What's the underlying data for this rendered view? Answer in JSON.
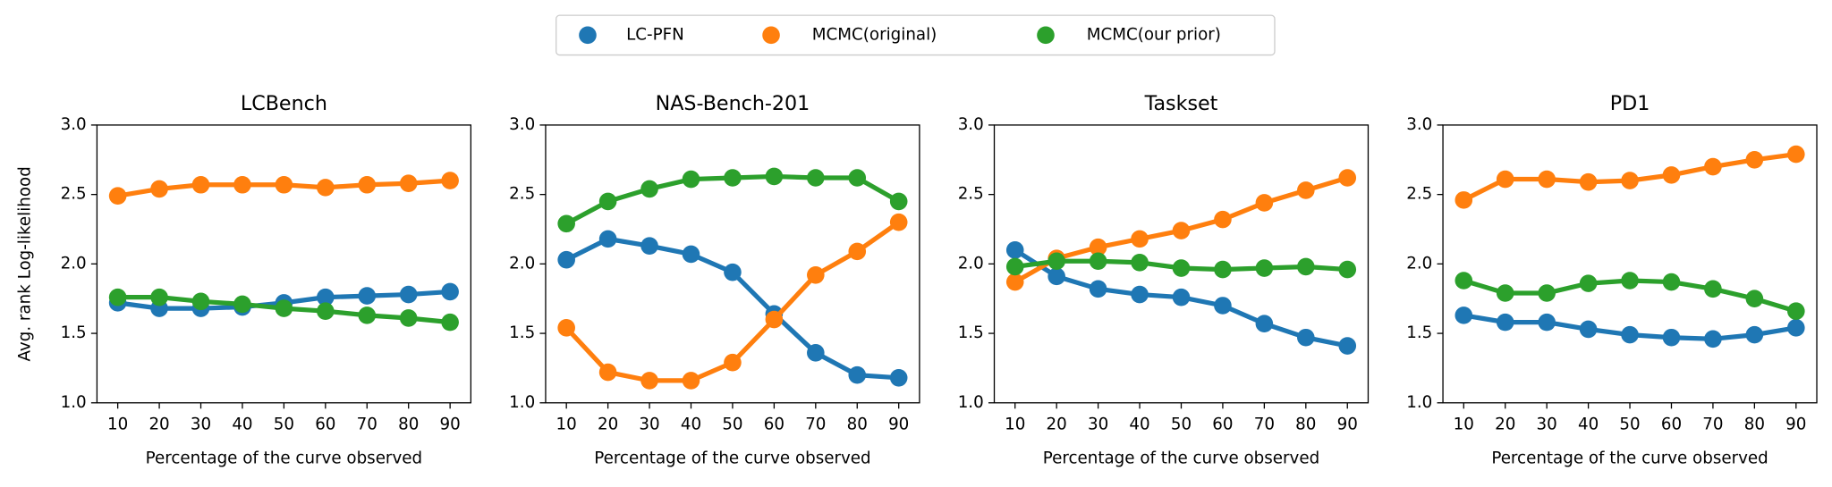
{
  "chart_data": [
    {
      "type": "line",
      "title": "LCBench",
      "ylabel": "Avg. rank Log-likelihood",
      "xlabel": "Percentage of the curve observed",
      "categories": [
        "10",
        "20",
        "30",
        "40",
        "50",
        "60",
        "70",
        "80",
        "90"
      ],
      "ylim": [
        1,
        3
      ],
      "yticks": [
        {
          "value": 1,
          "label": "1.0"
        },
        {
          "value": 1.5,
          "label": "1.5"
        },
        {
          "value": 2,
          "label": "2.0"
        },
        {
          "value": 2.5,
          "label": "2.5"
        },
        {
          "value": 3,
          "label": "3.0"
        }
      ],
      "series": [
        {
          "name": "LC-PFN",
          "color": "#1f77b4",
          "values": [
            1.72,
            1.68,
            1.68,
            1.69,
            1.72,
            1.76,
            1.77,
            1.78,
            1.8
          ]
        },
        {
          "name": "MCMC(original)",
          "color": "#ff7f0e",
          "values": [
            2.49,
            2.54,
            2.57,
            2.57,
            2.57,
            2.55,
            2.57,
            2.58,
            2.6
          ]
        },
        {
          "name": "MCMC(our prior)",
          "color": "#2ca02c",
          "values": [
            1.76,
            1.76,
            1.73,
            1.71,
            1.68,
            1.66,
            1.63,
            1.61,
            1.58
          ]
        }
      ]
    },
    {
      "type": "line",
      "title": "NAS-Bench-201",
      "xlabel": "Percentage of the curve observed",
      "categories": [
        "10",
        "20",
        "30",
        "40",
        "50",
        "60",
        "70",
        "80",
        "90"
      ],
      "ylim": [
        1,
        3
      ],
      "yticks": [
        {
          "value": 1,
          "label": "1.0"
        },
        {
          "value": 1.5,
          "label": "1.5"
        },
        {
          "value": 2,
          "label": "2.0"
        },
        {
          "value": 2.5,
          "label": "2.5"
        },
        {
          "value": 3,
          "label": "3.0"
        }
      ],
      "series": [
        {
          "name": "LC-PFN",
          "color": "#1f77b4",
          "values": [
            2.03,
            2.18,
            2.13,
            2.07,
            1.94,
            1.64,
            1.36,
            1.2,
            1.18
          ]
        },
        {
          "name": "MCMC(original)",
          "color": "#ff7f0e",
          "values": [
            1.54,
            1.22,
            1.16,
            1.16,
            1.29,
            1.6,
            1.92,
            2.09,
            2.3
          ]
        },
        {
          "name": "MCMC(our prior)",
          "color": "#2ca02c",
          "values": [
            2.29,
            2.45,
            2.54,
            2.61,
            2.62,
            2.63,
            2.62,
            2.62,
            2.45
          ]
        }
      ]
    },
    {
      "type": "line",
      "title": "Taskset",
      "xlabel": "Percentage of the curve observed",
      "categories": [
        "10",
        "20",
        "30",
        "40",
        "50",
        "60",
        "70",
        "80",
        "90"
      ],
      "ylim": [
        1,
        3
      ],
      "yticks": [
        {
          "value": 1,
          "label": "1.0"
        },
        {
          "value": 1.5,
          "label": "1.5"
        },
        {
          "value": 2,
          "label": "2.0"
        },
        {
          "value": 2.5,
          "label": "2.5"
        },
        {
          "value": 3,
          "label": "3.0"
        }
      ],
      "series": [
        {
          "name": "LC-PFN",
          "color": "#1f77b4",
          "values": [
            2.1,
            1.91,
            1.82,
            1.78,
            1.76,
            1.7,
            1.57,
            1.47,
            1.41
          ]
        },
        {
          "name": "MCMC(original)",
          "color": "#ff7f0e",
          "values": [
            1.87,
            2.04,
            2.12,
            2.18,
            2.24,
            2.32,
            2.44,
            2.53,
            2.62
          ]
        },
        {
          "name": "MCMC(our prior)",
          "color": "#2ca02c",
          "values": [
            1.98,
            2.02,
            2.02,
            2.01,
            1.97,
            1.96,
            1.97,
            1.98,
            1.96
          ]
        }
      ]
    },
    {
      "type": "line",
      "title": "PD1",
      "xlabel": "Percentage of the curve observed",
      "categories": [
        "10",
        "20",
        "30",
        "40",
        "50",
        "60",
        "70",
        "80",
        "90"
      ],
      "ylim": [
        1,
        3
      ],
      "yticks": [
        {
          "value": 1,
          "label": "1.0"
        },
        {
          "value": 1.5,
          "label": "1.5"
        },
        {
          "value": 2,
          "label": "2.0"
        },
        {
          "value": 2.5,
          "label": "2.5"
        },
        {
          "value": 3,
          "label": "3.0"
        }
      ],
      "series": [
        {
          "name": "LC-PFN",
          "color": "#1f77b4",
          "values": [
            1.63,
            1.58,
            1.58,
            1.53,
            1.49,
            1.47,
            1.46,
            1.49,
            1.54
          ]
        },
        {
          "name": "MCMC(original)",
          "color": "#ff7f0e",
          "values": [
            2.46,
            2.61,
            2.61,
            2.59,
            2.6,
            2.64,
            2.7,
            2.75,
            2.79
          ]
        },
        {
          "name": "MCMC(our prior)",
          "color": "#2ca02c",
          "values": [
            1.88,
            1.79,
            1.79,
            1.86,
            1.88,
            1.87,
            1.82,
            1.75,
            1.66
          ]
        }
      ]
    }
  ]
}
